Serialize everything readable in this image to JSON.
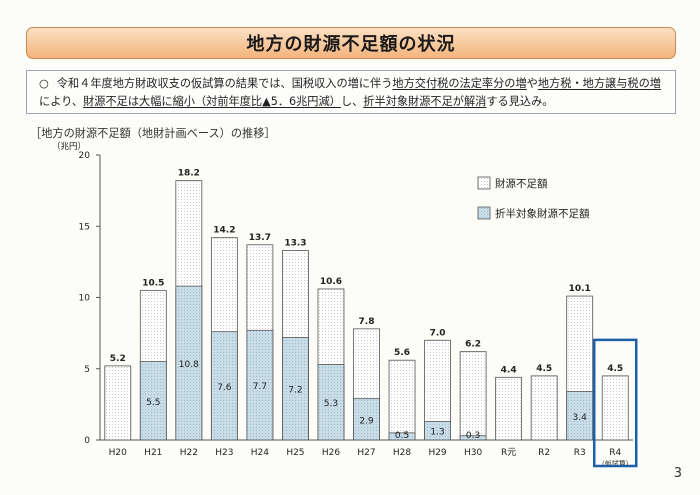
{
  "page_title": "地方の財源不足額の状況",
  "note": {
    "marker": "○",
    "segments": [
      {
        "text": "令和４年度地方財政収支の仮試算の結果では、国税収入の増に伴う",
        "u": false
      },
      {
        "text": "地方交付税の法定率分の増",
        "u": true
      },
      {
        "text": "や",
        "u": false
      },
      {
        "text": "地方税・地方譲与税の増",
        "u": true
      },
      {
        "text": "により、",
        "u": false
      },
      {
        "text": "財源不足は大幅に縮小（対前年度比▲5．6兆円減）",
        "u": true
      },
      {
        "text": "し、",
        "u": false
      },
      {
        "text": "折半対象財源不足が解消",
        "u": true
      },
      {
        "text": "する見込み。",
        "u": false
      }
    ]
  },
  "chart_subtitle": "［地方の財源不足額（地財計画ベース）の推移］",
  "page_number": "3",
  "chart_data": {
    "type": "bar",
    "categories": [
      "H20",
      "H21",
      "H22",
      "H23",
      "H24",
      "H25",
      "H26",
      "H27",
      "H28",
      "H29",
      "H30",
      "R元",
      "R2",
      "R3",
      "R4"
    ],
    "category_sub": {
      "R4": "（仮試算）"
    },
    "highlight_category": "R4",
    "unit_label": "（兆円）",
    "ylim": [
      0,
      20
    ],
    "yticks": [
      0,
      5,
      10,
      15,
      20
    ],
    "series": [
      {
        "name": "財源不足額",
        "values": [
          5.2,
          10.5,
          18.2,
          14.2,
          13.7,
          13.3,
          10.6,
          7.8,
          5.6,
          7.0,
          6.2,
          4.4,
          4.5,
          10.1,
          4.5
        ],
        "labels": [
          "5.2",
          "10.5",
          "18.2",
          "14.2",
          "13.7",
          "13.3",
          "10.6",
          "7.8",
          "5.6",
          "7.0",
          "6.2",
          "4.4",
          "4.5",
          "10.1",
          "4.5"
        ]
      },
      {
        "name": "折半対象財源不足額",
        "values": [
          0,
          5.5,
          10.8,
          7.6,
          7.7,
          7.2,
          5.3,
          2.9,
          0.5,
          1.3,
          0.3,
          0,
          0,
          3.4,
          0
        ],
        "labels": [
          "",
          "5.5",
          "10.8",
          "7.6",
          "7.7",
          "7.2",
          "5.3",
          "2.9",
          "0.5",
          "1.3",
          "0.3",
          "",
          "",
          "3.4",
          ""
        ]
      }
    ],
    "colors": {
      "total": "#ffffff",
      "shared": "#c8dde8",
      "highlight": "#1f5fa8",
      "axis": "#555555"
    },
    "grid": false,
    "legend_position": "top-right"
  }
}
